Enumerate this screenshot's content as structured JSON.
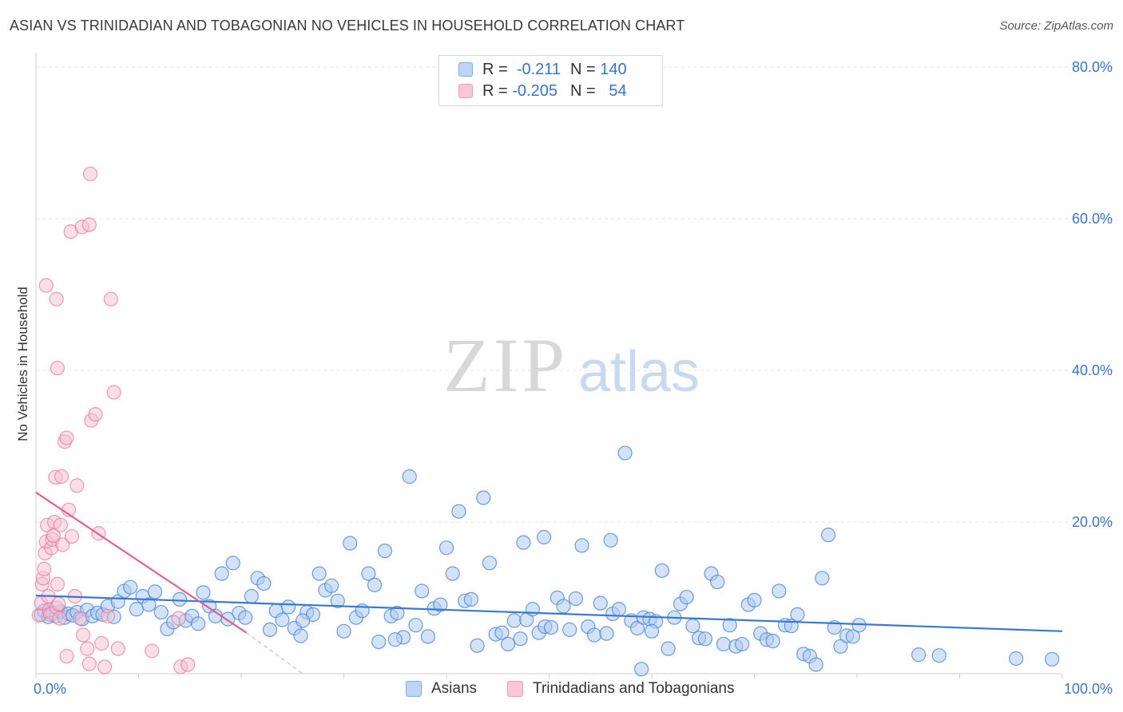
{
  "title": "ASIAN VS TRINIDADIAN AND TOBAGONIAN NO VEHICLES IN HOUSEHOLD CORRELATION CHART",
  "source": "Source: ZipAtlas.com",
  "watermark": {
    "zip": "ZIP",
    "atlas": "atlas"
  },
  "legend": {
    "rows": [
      {
        "r_label": "R =",
        "r_value": "-0.211",
        "n_label": "N =",
        "n_value": "140",
        "color": "#7aaee8",
        "fill": "#bdd6f4"
      },
      {
        "r_label": "R =",
        "r_value": "-0.205",
        "n_label": "N =",
        "n_value": "54",
        "color": "#f09ab8",
        "fill": "#f8c8d8"
      }
    ]
  },
  "bottom_legend": {
    "series1": "Asians",
    "series2": "Trinidadians and Tobagonians"
  },
  "chart_data": {
    "type": "scatter",
    "title": "ASIAN VS TRINIDADIAN AND TOBAGONIAN NO VEHICLES IN HOUSEHOLD CORRELATION CHART",
    "ylabel": "No Vehicles in Household",
    "xlabel": "",
    "xlim": [
      0,
      100
    ],
    "ylim": [
      0,
      80
    ],
    "x_tick_labels": [
      "0.0%",
      "100.0%"
    ],
    "y_ticks": [
      20,
      40,
      60,
      80
    ],
    "y_tick_labels": [
      "20.0%",
      "40.0%",
      "60.0%",
      "80.0%"
    ],
    "colors": {
      "asians": "#4a86d6",
      "asians_fill": "#aecbf0",
      "trini": "#e8709a",
      "trini_fill": "#f6bfd2",
      "trend_asians": "#3a78d2",
      "trend_trini": "#e0608e"
    },
    "series": [
      {
        "name": "Asians",
        "r": -0.211,
        "n": 140,
        "trend": {
          "x": [
            0,
            100
          ],
          "y": [
            10.3,
            5.6
          ]
        },
        "points": [
          [
            0.5,
            7.8
          ],
          [
            0.8,
            8.3
          ],
          [
            1.2,
            7.5
          ],
          [
            1.6,
            8.0
          ],
          [
            2.0,
            7.6
          ],
          [
            2.4,
            8.2
          ],
          [
            2.8,
            7.4
          ],
          [
            3.2,
            7.9
          ],
          [
            3.6,
            7.7
          ],
          [
            4.0,
            8.1
          ],
          [
            4.5,
            7.2
          ],
          [
            5.0,
            8.4
          ],
          [
            5.5,
            7.6
          ],
          [
            6.0,
            8.0
          ],
          [
            6.5,
            7.8
          ],
          [
            7.0,
            8.9
          ],
          [
            7.6,
            7.5
          ],
          [
            8.0,
            9.5
          ],
          [
            8.6,
            10.9
          ],
          [
            9.2,
            11.4
          ],
          [
            9.8,
            8.5
          ],
          [
            10.4,
            10.2
          ],
          [
            11.0,
            9.1
          ],
          [
            11.6,
            10.8
          ],
          [
            12.2,
            8.1
          ],
          [
            12.8,
            5.9
          ],
          [
            13.4,
            6.8
          ],
          [
            14.0,
            9.8
          ],
          [
            14.6,
            7.0
          ],
          [
            15.2,
            7.6
          ],
          [
            15.8,
            6.6
          ],
          [
            16.3,
            10.7
          ],
          [
            16.9,
            8.9
          ],
          [
            17.5,
            7.6
          ],
          [
            18.1,
            13.2
          ],
          [
            18.7,
            7.2
          ],
          [
            19.2,
            14.6
          ],
          [
            19.8,
            8.0
          ],
          [
            20.4,
            7.4
          ],
          [
            21.0,
            10.2
          ],
          [
            21.6,
            12.6
          ],
          [
            22.2,
            11.9
          ],
          [
            22.8,
            5.8
          ],
          [
            23.4,
            8.3
          ],
          [
            24.0,
            7.1
          ],
          [
            24.6,
            8.8
          ],
          [
            25.2,
            6.0
          ],
          [
            25.8,
            5.0
          ],
          [
            26.4,
            8.1
          ],
          [
            27.0,
            7.8
          ],
          [
            27.6,
            13.2
          ],
          [
            28.2,
            11.0
          ],
          [
            28.8,
            11.6
          ],
          [
            29.4,
            9.6
          ],
          [
            30.0,
            5.6
          ],
          [
            30.6,
            17.2
          ],
          [
            31.2,
            7.4
          ],
          [
            31.8,
            8.3
          ],
          [
            32.4,
            13.2
          ],
          [
            33.0,
            11.7
          ],
          [
            33.4,
            4.2
          ],
          [
            34.0,
            16.2
          ],
          [
            34.6,
            7.6
          ],
          [
            35.2,
            8.0
          ],
          [
            35.8,
            4.8
          ],
          [
            36.4,
            26.0
          ],
          [
            37.0,
            6.4
          ],
          [
            37.6,
            10.9
          ],
          [
            38.2,
            4.9
          ],
          [
            38.8,
            8.6
          ],
          [
            39.4,
            9.1
          ],
          [
            40.0,
            16.6
          ],
          [
            40.6,
            13.2
          ],
          [
            41.2,
            21.4
          ],
          [
            41.8,
            9.6
          ],
          [
            42.4,
            9.8
          ],
          [
            43.0,
            3.7
          ],
          [
            43.6,
            23.2
          ],
          [
            44.2,
            14.6
          ],
          [
            44.8,
            5.2
          ],
          [
            45.4,
            5.4
          ],
          [
            46.0,
            3.9
          ],
          [
            46.6,
            7.0
          ],
          [
            47.2,
            4.6
          ],
          [
            47.8,
            7.1
          ],
          [
            48.4,
            8.5
          ],
          [
            49.0,
            5.4
          ],
          [
            49.6,
            6.2
          ],
          [
            50.2,
            6.1
          ],
          [
            50.8,
            10.0
          ],
          [
            51.4,
            8.9
          ],
          [
            52.0,
            5.8
          ],
          [
            52.6,
            9.9
          ],
          [
            53.2,
            16.9
          ],
          [
            53.8,
            6.2
          ],
          [
            54.4,
            5.1
          ],
          [
            55.0,
            9.3
          ],
          [
            55.6,
            5.3
          ],
          [
            56.2,
            7.9
          ],
          [
            56.8,
            8.5
          ],
          [
            57.4,
            29.1
          ],
          [
            58.0,
            7.0
          ],
          [
            58.6,
            6.0
          ],
          [
            59.2,
            7.4
          ],
          [
            59.8,
            7.2
          ],
          [
            60.4,
            6.9
          ],
          [
            61.0,
            13.6
          ],
          [
            61.6,
            3.3
          ],
          [
            62.2,
            7.4
          ],
          [
            62.8,
            9.2
          ],
          [
            63.4,
            10.1
          ],
          [
            64.0,
            6.3
          ],
          [
            64.6,
            4.7
          ],
          [
            65.2,
            4.6
          ],
          [
            65.8,
            13.2
          ],
          [
            66.4,
            12.1
          ],
          [
            67.0,
            3.9
          ],
          [
            67.6,
            6.4
          ],
          [
            68.2,
            3.6
          ],
          [
            68.8,
            3.9
          ],
          [
            69.4,
            9.1
          ],
          [
            70.0,
            9.7
          ],
          [
            70.6,
            5.3
          ],
          [
            71.2,
            4.5
          ],
          [
            71.8,
            4.3
          ],
          [
            72.4,
            10.9
          ],
          [
            73.0,
            6.4
          ],
          [
            73.6,
            6.3
          ],
          [
            74.2,
            7.8
          ],
          [
            74.8,
            2.6
          ],
          [
            75.4,
            2.3
          ],
          [
            76.0,
            1.2
          ],
          [
            76.6,
            12.6
          ],
          [
            77.2,
            18.3
          ],
          [
            77.8,
            6.1
          ],
          [
            78.4,
            3.6
          ],
          [
            79.0,
            5.0
          ],
          [
            79.6,
            4.9
          ],
          [
            80.2,
            6.4
          ],
          [
            86.0,
            2.5
          ],
          [
            88.0,
            2.4
          ],
          [
            95.5,
            2.0
          ],
          [
            99.0,
            1.9
          ],
          [
            56.0,
            17.6
          ],
          [
            60.0,
            5.6
          ],
          [
            35.0,
            4.5
          ],
          [
            26.0,
            7.0
          ],
          [
            49.5,
            18.0
          ],
          [
            47.5,
            17.3
          ],
          [
            59.0,
            0.6
          ]
        ]
      },
      {
        "name": "Trinidadians and Tobagonians",
        "r": -0.205,
        "n": 54,
        "trend": {
          "x": [
            0,
            20.5
          ],
          "y": [
            23.9,
            5.4
          ]
        },
        "trend_dashed": {
          "x": [
            20.5,
            26
          ],
          "y": [
            5.4,
            0.0
          ]
        },
        "points": [
          [
            0.3,
            7.7
          ],
          [
            0.5,
            9.3
          ],
          [
            0.6,
            11.8
          ],
          [
            0.7,
            12.6
          ],
          [
            0.8,
            13.8
          ],
          [
            0.9,
            15.9
          ],
          [
            1.0,
            17.4
          ],
          [
            1.1,
            19.6
          ],
          [
            1.2,
            10.2
          ],
          [
            1.3,
            8.4
          ],
          [
            1.4,
            7.8
          ],
          [
            1.5,
            16.6
          ],
          [
            1.6,
            17.7
          ],
          [
            1.7,
            18.2
          ],
          [
            1.8,
            20.0
          ],
          [
            1.9,
            25.9
          ],
          [
            2.0,
            8.7
          ],
          [
            2.1,
            11.8
          ],
          [
            2.2,
            9.2
          ],
          [
            2.3,
            7.3
          ],
          [
            2.4,
            19.6
          ],
          [
            2.6,
            17.0
          ],
          [
            2.8,
            30.6
          ],
          [
            3.0,
            31.1
          ],
          [
            3.2,
            21.6
          ],
          [
            3.5,
            18.1
          ],
          [
            3.8,
            10.2
          ],
          [
            4.0,
            24.8
          ],
          [
            4.3,
            7.3
          ],
          [
            4.6,
            5.1
          ],
          [
            5.0,
            3.3
          ],
          [
            5.2,
            1.3
          ],
          [
            5.4,
            33.4
          ],
          [
            5.8,
            34.2
          ],
          [
            6.1,
            18.5
          ],
          [
            6.4,
            4.0
          ],
          [
            6.7,
            0.9
          ],
          [
            7.0,
            7.6
          ],
          [
            7.3,
            49.4
          ],
          [
            7.6,
            37.1
          ],
          [
            8.0,
            3.3
          ],
          [
            1.0,
            51.2
          ],
          [
            2.0,
            49.4
          ],
          [
            2.1,
            40.3
          ],
          [
            2.5,
            26.0
          ],
          [
            3.0,
            2.3
          ],
          [
            3.4,
            58.3
          ],
          [
            4.5,
            58.9
          ],
          [
            5.3,
            65.9
          ],
          [
            5.2,
            59.2
          ],
          [
            11.3,
            3.0
          ],
          [
            14.1,
            0.9
          ],
          [
            14.8,
            1.2
          ],
          [
            13.9,
            7.3
          ]
        ]
      }
    ]
  }
}
